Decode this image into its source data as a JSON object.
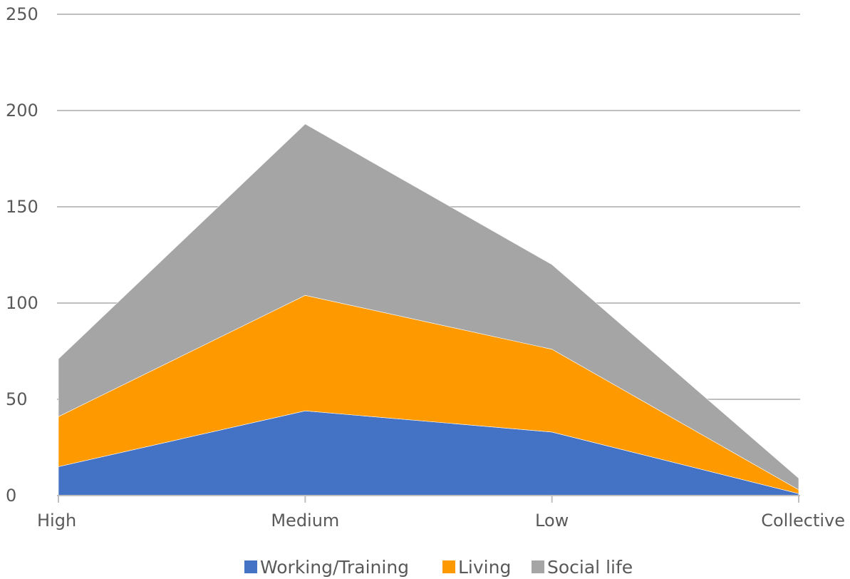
{
  "chart_data": {
    "type": "area",
    "stacked": true,
    "categories": [
      "High",
      "Medium",
      "Low",
      "Collective"
    ],
    "series": [
      {
        "name": "Working/Training",
        "values": [
          15,
          44,
          33,
          1
        ],
        "color": "#4472C4"
      },
      {
        "name": "Living",
        "values": [
          26,
          60,
          43,
          2
        ],
        "color": "#FF9900"
      },
      {
        "name": "Social life",
        "values": [
          30,
          89,
          44,
          6
        ],
        "color": "#A5A5A5"
      }
    ],
    "y_ticks": [
      "0",
      "50",
      "100",
      "150",
      "200",
      "250"
    ],
    "ylim": [
      0,
      250
    ],
    "grid": true,
    "legend_position": "bottom",
    "title": "",
    "xlabel": "",
    "ylabel": ""
  }
}
